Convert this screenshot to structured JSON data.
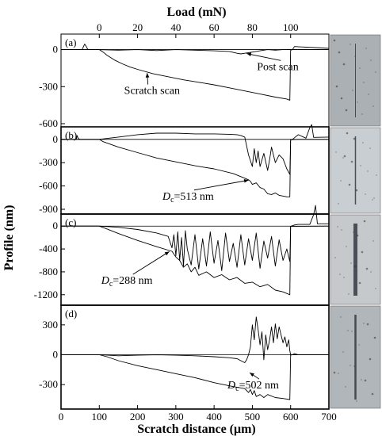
{
  "colors": {
    "line": "#000000",
    "micro_bg": [
      "#aab0b4",
      "#c9ced2",
      "#c5c9cc",
      "#b0b6ba"
    ],
    "micro_track": "#2a2f3a"
  },
  "chart_data": {
    "type": "line",
    "xlabel": "Scratch distance (μm)",
    "ylabel": "Profile (nm)",
    "top_axis_label": "Load (mN)",
    "xlim": [
      0,
      700
    ],
    "top_axis": {
      "ticks": [
        0,
        20,
        40,
        60,
        80,
        100
      ],
      "x_at_load0": 100,
      "x_per_mN": 5
    },
    "x_ticks": [
      0,
      100,
      200,
      300,
      400,
      500,
      600,
      700
    ],
    "panels": [
      {
        "letter": "(a)",
        "ylim": [
          -600,
          100
        ],
        "y_ticks": [
          0,
          -300,
          -600
        ],
        "series": [
          {
            "role": "scratch",
            "x": [
              0,
              55,
              58,
              62,
              66,
              70,
              80,
              90,
              100,
              110,
              120,
              140,
              160,
              180,
              200,
              240,
              280,
              320,
              360,
              400,
              440,
              480,
              520,
              560,
              590,
              598,
              600,
              605,
              610,
              640,
              700
            ],
            "y": [
              0,
              0,
              20,
              45,
              25,
              0,
              0,
              0,
              0,
              -20,
              -45,
              -85,
              -115,
              -140,
              -160,
              -195,
              -220,
              -245,
              -265,
              -285,
              -310,
              -335,
              -360,
              -385,
              -400,
              -410,
              -5,
              0,
              25,
              20,
              10
            ]
          },
          {
            "role": "post",
            "x": [
              0,
              100,
              150,
              200,
              250,
              300,
              350,
              400,
              440,
              460,
              470,
              480,
              500,
              520,
              540,
              560,
              580,
              600,
              700
            ],
            "y": [
              0,
              0,
              -5,
              0,
              -8,
              0,
              -5,
              -10,
              -15,
              -30,
              -35,
              -30,
              -20,
              -10,
              0,
              -5,
              0,
              0,
              0
            ]
          }
        ],
        "annotations": [
          {
            "text": "Scratch scan",
            "x": 165,
            "y": -360,
            "arrow_to_x": 225,
            "arrow_to_y": -190
          },
          {
            "text": "Post scan",
            "x": 512,
            "y": -165,
            "arrow_to_x": 485,
            "arrow_to_y": -32
          }
        ]
      },
      {
        "letter": "(b)",
        "ylim": [
          -900,
          100
        ],
        "y_ticks": [
          0,
          -300,
          -600,
          -900
        ],
        "series": [
          {
            "role": "scratch",
            "x": [
              0,
              40,
              42,
              45,
              50,
              100,
              110,
              150,
              200,
              250,
              300,
              350,
              400,
              450,
              480,
              490,
              495,
              500,
              510,
              520,
              530,
              540,
              550,
              560,
              570,
              580,
              590,
              598,
              600,
              605,
              610,
              620,
              640,
              650,
              655,
              660,
              700
            ],
            "y": [
              0,
              0,
              50,
              10,
              0,
              0,
              -30,
              -100,
              -170,
              -240,
              -290,
              -340,
              -380,
              -440,
              -500,
              -520,
              -540,
              -580,
              -560,
              -620,
              -640,
              -700,
              -710,
              -690,
              -720,
              -730,
              -740,
              -740,
              -5,
              0,
              20,
              60,
              15,
              150,
              190,
              25,
              30
            ]
          },
          {
            "role": "post",
            "x": [
              0,
              100,
              150,
              200,
              250,
              300,
              350,
              400,
              440,
              460,
              470,
              480,
              490,
              500,
              505,
              510,
              515,
              520,
              530,
              540,
              545,
              550,
              560,
              570,
              580,
              590,
              598,
              600,
              620,
              700
            ],
            "y": [
              0,
              0,
              30,
              60,
              80,
              80,
              70,
              70,
              65,
              60,
              50,
              30,
              -200,
              -350,
              -120,
              -300,
              -150,
              -350,
              -180,
              -400,
              -260,
              -100,
              -300,
              -200,
              -250,
              -380,
              -450,
              -5,
              0,
              0
            ]
          }
        ],
        "annotations": [
          {
            "text": "513 nm",
            "prefix": "D",
            "subscript": "c",
            "x": 265,
            "y": -775,
            "arrow_to_x": 490,
            "arrow_to_y": -525
          }
        ]
      },
      {
        "letter": "(c)",
        "ylim": [
          -1300,
          100
        ],
        "y_ticks": [
          0,
          -400,
          -800,
          -1200
        ],
        "series": [
          {
            "role": "scratch",
            "x": [
              0,
              100,
              120,
              150,
              200,
              250,
              290,
              300,
              310,
              320,
              330,
              340,
              350,
              360,
              380,
              400,
              420,
              440,
              460,
              480,
              500,
              520,
              540,
              560,
              580,
              598,
              600,
              610,
              620,
              650,
              660,
              665,
              670,
              700
            ],
            "y": [
              0,
              0,
              -50,
              -130,
              -250,
              -360,
              -440,
              -540,
              -600,
              -720,
              -660,
              -800,
              -720,
              -860,
              -800,
              -900,
              -850,
              -940,
              -900,
              -1000,
              -980,
              -1060,
              -1020,
              -1120,
              -1150,
              -1200,
              -5,
              20,
              30,
              30,
              200,
              360,
              40,
              40
            ]
          },
          {
            "role": "post",
            "x": [
              0,
              100,
              150,
              200,
              250,
              280,
              290,
              295,
              300,
              305,
              310,
              315,
              320,
              325,
              330,
              340,
              350,
              360,
              370,
              380,
              390,
              400,
              410,
              420,
              430,
              440,
              450,
              460,
              470,
              480,
              490,
              500,
              510,
              520,
              530,
              540,
              550,
              560,
              570,
              580,
              590,
              598,
              600,
              700
            ],
            "y": [
              0,
              0,
              -20,
              -60,
              -120,
              -180,
              -380,
              -150,
              -520,
              -100,
              -600,
              -200,
              -700,
              -80,
              -400,
              -680,
              -150,
              -750,
              -220,
              -700,
              -100,
              -650,
              -250,
              -780,
              -120,
              -620,
              -300,
              -720,
              -150,
              -680,
              -220,
              -600,
              -120,
              -740,
              -260,
              -560,
              -180,
              -700,
              -240,
              -600,
              -400,
              -620,
              -5,
              0
            ]
          }
        ],
        "annotations": [
          {
            "text": "288 nm",
            "prefix": "D",
            "subscript": "c",
            "x": 105,
            "y": -1010,
            "arrow_to_x": 283,
            "arrow_to_y": -445
          }
        ]
      },
      {
        "letter": "(d)",
        "ylim": [
          -450,
          450
        ],
        "y_ticks": [
          300,
          0,
          -300
        ],
        "series": [
          {
            "role": "scratch",
            "x": [
              0,
              100,
              120,
              150,
              200,
              250,
              300,
              350,
              400,
              450,
              480,
              490,
              495,
              500,
              505,
              510,
              520,
              530,
              540,
              560,
              580,
              598,
              600,
              605,
              610,
              620,
              700
            ],
            "y": [
              0,
              0,
              -20,
              -60,
              -110,
              -150,
              -190,
              -230,
              -280,
              -320,
              -340,
              -380,
              -350,
              -400,
              -360,
              -420,
              -400,
              -430,
              -400,
              -430,
              -440,
              -450,
              -5,
              0,
              10,
              0,
              0
            ]
          },
          {
            "role": "post",
            "x": [
              0,
              100,
              150,
              200,
              250,
              300,
              350,
              400,
              440,
              460,
              470,
              480,
              485,
              490,
              495,
              500,
              505,
              510,
              515,
              520,
              525,
              530,
              535,
              540,
              545,
              550,
              555,
              560,
              565,
              570,
              575,
              580,
              585,
              590,
              595,
              598,
              600,
              700
            ],
            "y": [
              0,
              0,
              -10,
              -5,
              0,
              -5,
              -10,
              -20,
              -30,
              -40,
              -60,
              -80,
              -50,
              0,
              80,
              300,
              150,
              380,
              250,
              100,
              230,
              -50,
              200,
              50,
              150,
              280,
              120,
              310,
              160,
              280,
              200,
              120,
              180,
              80,
              150,
              40,
              0,
              0
            ]
          }
        ],
        "annotations": [
          {
            "text": "502 nm",
            "prefix": "D",
            "subscript": "c",
            "x": 435,
            "y": -340,
            "arrow_to_x": 493,
            "arrow_to_y": -180
          }
        ]
      }
    ]
  }
}
